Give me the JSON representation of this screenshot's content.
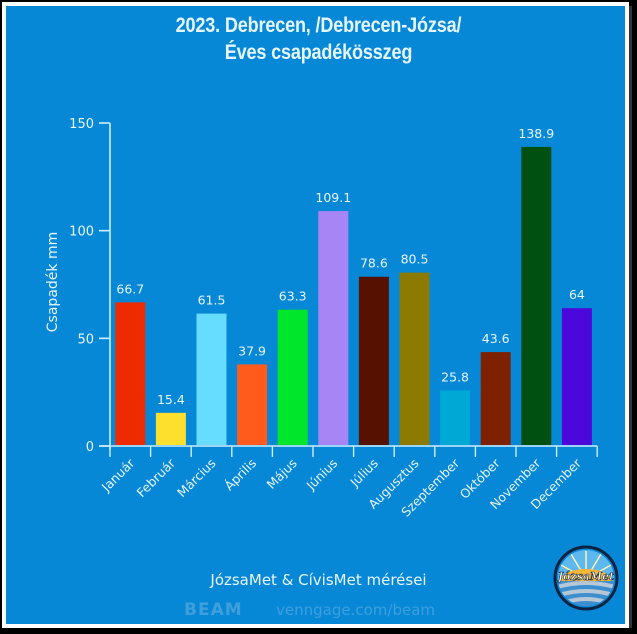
{
  "header": {
    "title_line1": "2023. Debrecen, /Debrecen-Józsa/",
    "title_line2": "Éves csapadékösszeg"
  },
  "footer": {
    "credit": "JózsaMet & CívisMet mérései",
    "beam_logo": "BEAM",
    "venngage_url": "venngage.com/beam",
    "logo_text": "JózsaMet",
    "logo_icon": "sun-over-waves-logo"
  },
  "colors": {
    "background": "#0688d6",
    "axis": "#cdeeff",
    "text": "#e9f6ff"
  },
  "chart_data": {
    "type": "bar",
    "title": "2023. Debrecen, /Debrecen-Józsa/ Éves csapadékösszeg",
    "xlabel": "",
    "ylabel": "Csapadék mm",
    "ylim": [
      0,
      150
    ],
    "yticks": [
      0,
      50,
      100,
      150
    ],
    "grid": false,
    "legend": "none",
    "categories": [
      "Január",
      "Február",
      "Március",
      "Április",
      "Május",
      "Június",
      "Július",
      "Augusztus",
      "Szeptember",
      "Október",
      "November",
      "December"
    ],
    "values": [
      66.7,
      15.4,
      61.5,
      37.9,
      63.3,
      109.1,
      78.6,
      80.5,
      25.8,
      43.6,
      138.9,
      64
    ],
    "value_labels": [
      "66.7",
      "15.4",
      "61.5",
      "37.9",
      "63.3",
      "109.1",
      "78.6",
      "80.5",
      "25.8",
      "43.6",
      "138.9",
      "64"
    ],
    "bar_colors": [
      "#ee2a00",
      "#fde02e",
      "#66dcff",
      "#ff5b1d",
      "#00e62a",
      "#a885f4",
      "#561100",
      "#8d7a00",
      "#00a8d6",
      "#7d2100",
      "#005011",
      "#4c07db"
    ]
  }
}
